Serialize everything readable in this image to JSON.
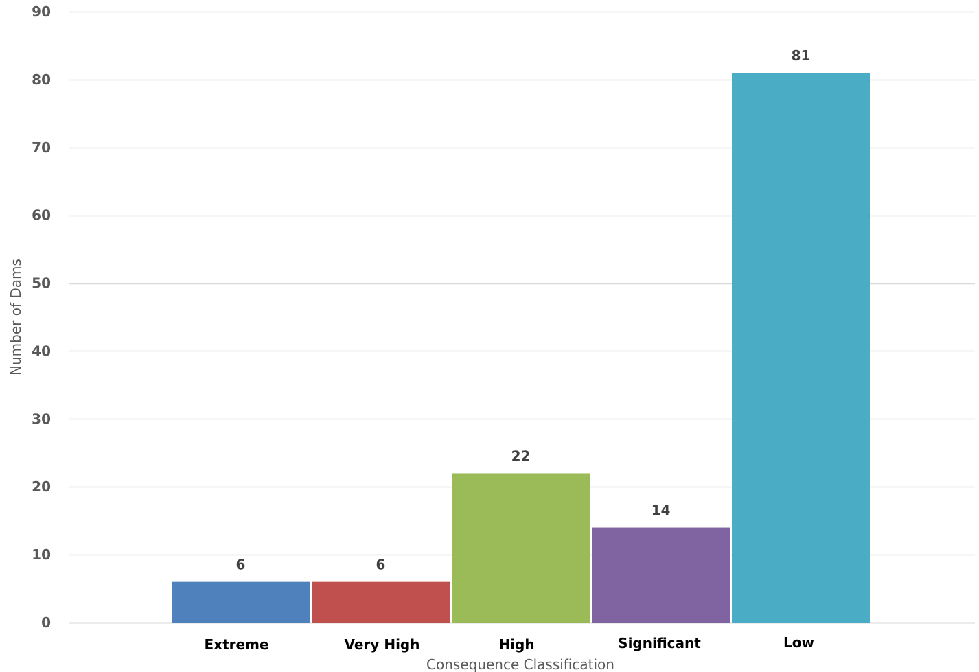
{
  "chart_data": {
    "type": "bar",
    "xlabel": "Consequence Classification",
    "ylabel": "Number of Dams",
    "ylim": [
      0,
      90
    ],
    "yticks": [
      0,
      10,
      20,
      30,
      40,
      50,
      60,
      70,
      80,
      90
    ],
    "grid": true,
    "categories": [
      "Extreme",
      "Very High",
      "High",
      "Significant",
      "Low"
    ],
    "values": [
      6,
      6,
      22,
      14,
      81
    ],
    "colors": [
      "#4F81BD",
      "#C0504D",
      "#9BBB59",
      "#8064A2",
      "#4BACC6"
    ],
    "gridline_color": "#D9D9D9"
  }
}
